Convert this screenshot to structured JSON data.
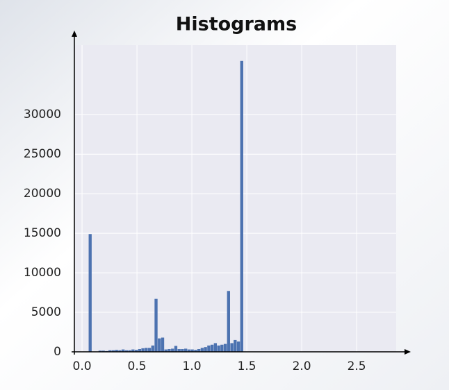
{
  "chart_data": {
    "type": "histogram",
    "title": "Histograms",
    "bins": [
      0.06,
      0.09,
      0.12,
      0.15,
      0.18,
      0.21,
      0.24,
      0.27,
      0.3,
      0.33,
      0.36,
      0.39,
      0.42,
      0.45,
      0.48,
      0.51,
      0.54,
      0.57,
      0.6,
      0.63,
      0.66,
      0.69,
      0.72,
      0.75,
      0.78,
      0.81,
      0.84,
      0.87,
      0.9,
      0.93,
      0.96,
      0.99,
      1.02,
      1.05,
      1.08,
      1.11,
      1.14,
      1.17,
      1.2,
      1.23,
      1.26,
      1.29,
      1.32,
      1.35,
      1.38,
      1.41,
      1.44,
      1.47
    ],
    "values": [
      14900,
      0,
      0,
      150,
      150,
      100,
      200,
      200,
      250,
      200,
      300,
      200,
      200,
      300,
      250,
      350,
      450,
      500,
      500,
      800,
      6700,
      1700,
      1800,
      300,
      350,
      400,
      750,
      350,
      350,
      400,
      300,
      300,
      250,
      350,
      500,
      600,
      800,
      900,
      1100,
      800,
      900,
      1000,
      7700,
      1100,
      1500,
      1300,
      36800
    ],
    "color": "#4c72b0",
    "xlim": [
      -0.07,
      2.86
    ],
    "xticks": [
      {
        "value": 0,
        "label": "0.0"
      },
      0.5,
      {
        "value": 1,
        "label": "1.0"
      },
      1.5,
      {
        "value": 2,
        "label": "2.0"
      },
      2.5
    ],
    "ylim": [
      0,
      38800
    ],
    "yticks": [
      0,
      5000,
      10000,
      15000,
      20000,
      25000,
      30000
    ],
    "grid": true
  }
}
